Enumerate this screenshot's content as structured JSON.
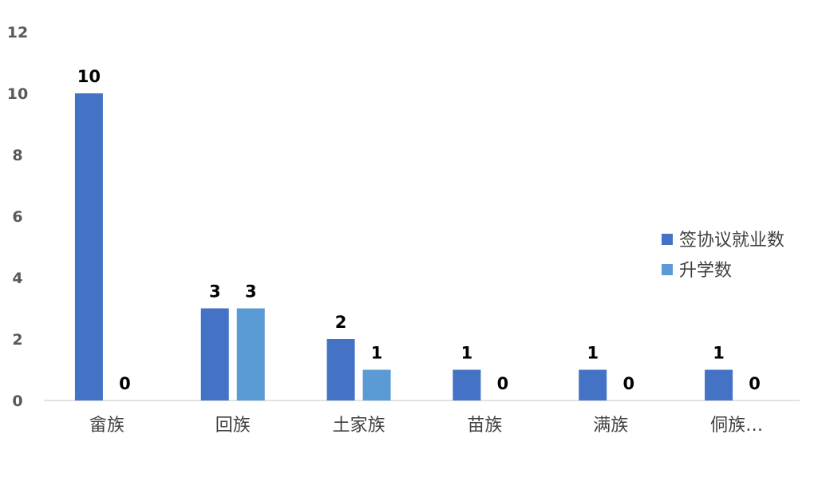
{
  "chart_data": {
    "type": "bar",
    "categories": [
      "畲族",
      "回族",
      "土家族",
      "苗族",
      "满族",
      "侗族…"
    ],
    "series": [
      {
        "name": "签协议就业数",
        "color": "#4472C4",
        "values": [
          10,
          3,
          2,
          1,
          1,
          1
        ]
      },
      {
        "name": "升学数",
        "color": "#5B9BD5",
        "values": [
          0,
          3,
          1,
          0,
          0,
          0
        ]
      }
    ],
    "ylim": [
      0,
      12
    ],
    "yticks": [
      0,
      2,
      4,
      6,
      8,
      10,
      12
    ],
    "grid": false,
    "legend_position": "right",
    "data_labels": true
  }
}
